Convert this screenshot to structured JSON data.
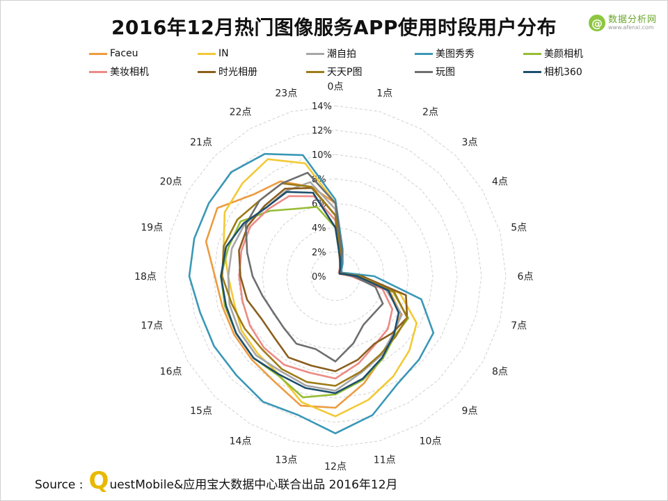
{
  "title": "2016年12月热门图像服务APP使用时段用户分布",
  "logo": {
    "mark": "@",
    "name": "数据分析网",
    "url": "www.afenxi.com"
  },
  "footer": {
    "prefix": "Source :",
    "q_letter": "Q",
    "rest": "uestMobile&应用宝大数据中心联合出品 2016年12月"
  },
  "chart_data": {
    "type": "radar",
    "categories": [
      "0点",
      "1点",
      "2点",
      "3点",
      "4点",
      "5点",
      "6点",
      "7点",
      "8点",
      "9点",
      "10点",
      "11点",
      "12点",
      "13点",
      "14点",
      "15点",
      "16点",
      "17点",
      "18点",
      "19点",
      "20点",
      "21点",
      "22点",
      "23点"
    ],
    "ticks": [
      "0%",
      "2%",
      "4%",
      "6%",
      "8%",
      "10%",
      "12%",
      "14%"
    ],
    "rmax": 14,
    "grid": true,
    "legend_position": "top",
    "series": [
      {
        "name": "Faceu",
        "color": "#ed9b40",
        "values": [
          6.0,
          2.2,
          1.1,
          0.7,
          0.6,
          0.8,
          1.9,
          4.6,
          6.2,
          6.8,
          7.7,
          9.1,
          10.8,
          11.0,
          10.0,
          9.7,
          9.6,
          9.6,
          9.9,
          11.0,
          11.2,
          9.5,
          9.0,
          7.6
        ]
      },
      {
        "name": "IN",
        "color": "#f2c935",
        "values": [
          6.0,
          2.1,
          1.0,
          0.6,
          0.5,
          0.7,
          1.9,
          5.5,
          7.7,
          8.6,
          9.5,
          10.5,
          11.5,
          10.7,
          9.3,
          9.0,
          8.9,
          8.6,
          8.8,
          9.5,
          10.5,
          10.8,
          11.1,
          9.6
        ]
      },
      {
        "name": "潮自拍",
        "color": "#a6a6a6",
        "values": [
          5.5,
          1.6,
          0.9,
          0.5,
          0.4,
          0.6,
          1.5,
          4.3,
          6.3,
          6.7,
          7.5,
          8.2,
          9.4,
          9.3,
          9.0,
          9.2,
          9.1,
          9.0,
          8.8,
          8.8,
          8.6,
          8.0,
          8.1,
          8.0
        ]
      },
      {
        "name": "美图秀秀",
        "color": "#3a97b6",
        "values": [
          6.3,
          2.3,
          1.2,
          0.7,
          0.6,
          1.0,
          3.2,
          7.3,
          9.3,
          9.7,
          10.2,
          11.8,
          12.9,
          11.8,
          11.9,
          11.5,
          11.5,
          11.5,
          12.0,
          12.0,
          12.0,
          12.1,
          11.6,
          10.3
        ]
      },
      {
        "name": "美颜相机",
        "color": "#96bc33",
        "values": [
          4.0,
          1.5,
          0.8,
          0.4,
          0.4,
          0.7,
          1.6,
          4.9,
          6.9,
          6.9,
          7.8,
          8.8,
          9.7,
          10.3,
          9.4,
          9.5,
          9.4,
          9.4,
          9.4,
          9.1,
          9.0,
          7.6,
          6.4,
          5.9
        ]
      },
      {
        "name": "美妆相机",
        "color": "#ec8a84",
        "values": [
          4.6,
          1.5,
          0.7,
          0.4,
          0.4,
          0.6,
          1.3,
          4.0,
          5.4,
          6.1,
          6.5,
          7.4,
          8.4,
          8.2,
          8.4,
          8.3,
          8.1,
          7.9,
          7.9,
          8.0,
          8.1,
          7.8,
          7.6,
          6.8
        ]
      },
      {
        "name": "时光相册",
        "color": "#8a5e1d",
        "values": [
          5.0,
          1.4,
          0.8,
          0.5,
          0.4,
          0.7,
          2.2,
          6.0,
          6.8,
          6.6,
          6.4,
          7.1,
          7.8,
          7.6,
          7.7,
          7.1,
          7.0,
          7.5,
          7.8,
          8.2,
          8.3,
          8.2,
          8.3,
          7.5
        ]
      },
      {
        "name": "天天P图",
        "color": "#9d7b17",
        "values": [
          5.0,
          1.9,
          0.9,
          0.5,
          0.5,
          0.8,
          2.0,
          5.0,
          6.8,
          7.0,
          7.4,
          8.1,
          9.0,
          9.0,
          8.8,
          8.5,
          8.6,
          8.8,
          9.3,
          9.5,
          9.3,
          8.8,
          8.8,
          7.6
        ]
      },
      {
        "name": "玩图",
        "color": "#6e6e6e",
        "values": [
          6.0,
          2.1,
          0.9,
          0.5,
          0.5,
          0.7,
          1.5,
          3.4,
          4.5,
          4.4,
          4.6,
          5.7,
          7.0,
          6.2,
          6.4,
          6.0,
          5.9,
          6.2,
          6.8,
          7.5,
          8.5,
          8.8,
          8.8,
          8.8
        ]
      },
      {
        "name": "相机360",
        "color": "#1c4e6e",
        "values": [
          4.0,
          1.5,
          0.8,
          0.5,
          0.4,
          0.7,
          1.8,
          4.5,
          6.0,
          6.8,
          7.7,
          8.7,
          9.6,
          9.5,
          9.3,
          9.5,
          9.4,
          9.3,
          9.4,
          9.3,
          8.7,
          8.0,
          8.0,
          7.1
        ]
      }
    ]
  }
}
